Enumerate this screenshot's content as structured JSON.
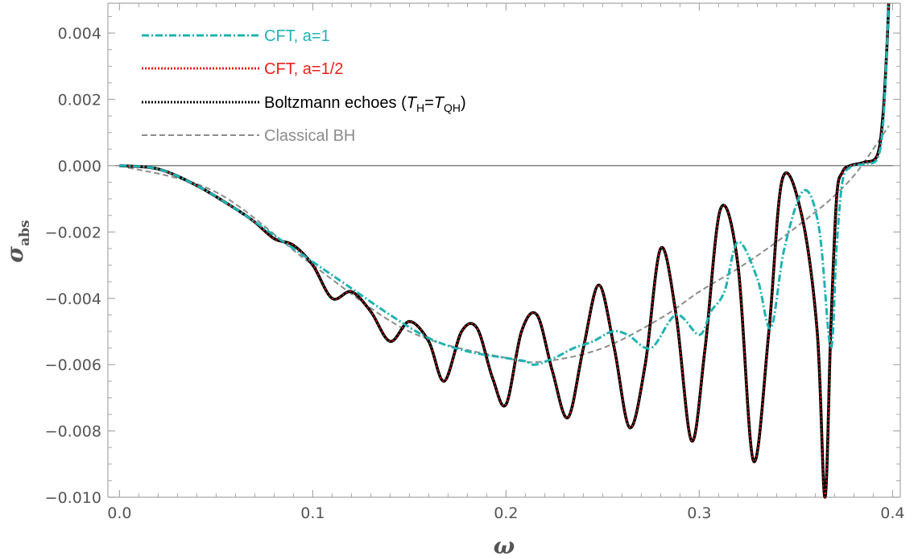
{
  "chart_data": {
    "type": "line",
    "xlabel": "ω",
    "ylabel_main": "σ",
    "ylabel_sub": "abs",
    "xlim": [
      -0.006,
      0.404
    ],
    "ylim": [
      -0.01,
      0.0049
    ],
    "xticks": [
      0.0,
      0.1,
      0.2,
      0.3,
      0.4
    ],
    "xtick_labels": [
      "0.0",
      "0.1",
      "0.2",
      "0.3",
      "0.4"
    ],
    "yticks": [
      0.004,
      0.002,
      0.0,
      -0.002,
      -0.004,
      -0.006,
      -0.008,
      -0.01
    ],
    "ytick_labels": [
      "0.004",
      "0.002",
      "0.000",
      "−0.002",
      "−0.004",
      "−0.006",
      "−0.008",
      "−0.010"
    ],
    "grid": false,
    "legend_position": "top-left",
    "legend": [
      {
        "label": "CFT, a=1",
        "color": "#20B2B2",
        "style": "dash-dot"
      },
      {
        "label": "CFT, a=1/2",
        "color": "#E8201C",
        "style": "dotted"
      },
      {
        "label_parts": [
          "Boltzmann echoes (",
          "T",
          "H",
          "=",
          "T",
          "QH",
          ")"
        ],
        "color": "#000000",
        "style": "dotted"
      },
      {
        "label": "Classical BH",
        "color": "#8C8C8C",
        "style": "dashed"
      }
    ],
    "series": [
      {
        "name": "CFT, a=1",
        "color": "#20B2B2",
        "x": [
          0.0,
          0.02,
          0.04,
          0.06,
          0.08,
          0.09,
          0.1,
          0.12,
          0.14,
          0.16,
          0.18,
          0.2,
          0.21,
          0.215,
          0.225,
          0.235,
          0.245,
          0.255,
          0.263,
          0.275,
          0.288,
          0.3,
          0.306,
          0.313,
          0.32,
          0.33,
          0.337,
          0.344,
          0.354,
          0.362,
          0.368,
          0.371,
          0.374,
          0.378,
          0.385,
          0.392,
          0.395,
          0.397,
          0.398
        ],
        "y": [
          0.0,
          -0.0001,
          -0.0006,
          -0.0013,
          -0.0021,
          -0.0025,
          -0.0029,
          -0.0037,
          -0.0045,
          -0.0052,
          -0.0056,
          -0.0058,
          -0.0059,
          -0.006,
          -0.0058,
          -0.0055,
          -0.0053,
          -0.005,
          -0.0051,
          -0.0055,
          -0.0045,
          -0.0051,
          -0.0044,
          -0.0038,
          -0.0023,
          -0.0034,
          -0.0049,
          -0.0025,
          -0.00075,
          -0.0019,
          -0.0055,
          -0.0025,
          -0.0005,
          -5e-05,
          5e-05,
          0.0002,
          0.0012,
          0.0035,
          0.0049
        ]
      },
      {
        "name": "CFT, a=1/2",
        "color": "#E8201C",
        "x": [
          0.0,
          0.02,
          0.04,
          0.06,
          0.07,
          0.08,
          0.09,
          0.1,
          0.11,
          0.12,
          0.13,
          0.14,
          0.15,
          0.16,
          0.168,
          0.177,
          0.185,
          0.193,
          0.2,
          0.208,
          0.216,
          0.224,
          0.232,
          0.24,
          0.248,
          0.256,
          0.264,
          0.272,
          0.28,
          0.288,
          0.296,
          0.303,
          0.311,
          0.32,
          0.328,
          0.336,
          0.343,
          0.353,
          0.361,
          0.365,
          0.368,
          0.371,
          0.374,
          0.378,
          0.385,
          0.392,
          0.395,
          0.397,
          0.398
        ],
        "y": [
          0.0,
          -0.0001,
          -0.0006,
          -0.0013,
          -0.0017,
          -0.0022,
          -0.0024,
          -0.003,
          -0.004,
          -0.0038,
          -0.0044,
          -0.0053,
          -0.0047,
          -0.0053,
          -0.0065,
          -0.005,
          -0.0049,
          -0.0064,
          -0.0072,
          -0.005,
          -0.0045,
          -0.0062,
          -0.0076,
          -0.0055,
          -0.0036,
          -0.0055,
          -0.0079,
          -0.006,
          -0.0025,
          -0.0045,
          -0.0083,
          -0.0055,
          -0.0013,
          -0.003,
          -0.0089,
          -0.005,
          -0.0004,
          -0.0015,
          -0.005,
          -0.01,
          -0.005,
          -0.001,
          -0.0002,
          0.0,
          0.0001,
          0.0003,
          0.0015,
          0.0035,
          0.0049
        ]
      },
      {
        "name": "Boltzmann echoes (TH=TQH)",
        "color": "#000000",
        "x": [
          0.0,
          0.02,
          0.04,
          0.06,
          0.07,
          0.08,
          0.09,
          0.1,
          0.11,
          0.12,
          0.13,
          0.14,
          0.15,
          0.16,
          0.168,
          0.177,
          0.185,
          0.193,
          0.2,
          0.208,
          0.216,
          0.224,
          0.232,
          0.24,
          0.248,
          0.256,
          0.264,
          0.272,
          0.28,
          0.288,
          0.296,
          0.303,
          0.311,
          0.32,
          0.328,
          0.336,
          0.343,
          0.353,
          0.361,
          0.365,
          0.368,
          0.371,
          0.374,
          0.378,
          0.385,
          0.392,
          0.395,
          0.397,
          0.398
        ],
        "y": [
          0.0,
          -0.0001,
          -0.0006,
          -0.0013,
          -0.0017,
          -0.0022,
          -0.0024,
          -0.003,
          -0.004,
          -0.0038,
          -0.0044,
          -0.0053,
          -0.0047,
          -0.0053,
          -0.0065,
          -0.005,
          -0.0049,
          -0.0064,
          -0.0072,
          -0.005,
          -0.0045,
          -0.0062,
          -0.0076,
          -0.0055,
          -0.0036,
          -0.0055,
          -0.0079,
          -0.006,
          -0.0025,
          -0.0045,
          -0.0083,
          -0.0055,
          -0.0013,
          -0.003,
          -0.0089,
          -0.005,
          -0.0004,
          -0.0015,
          -0.005,
          -0.01,
          -0.005,
          -0.001,
          -0.0002,
          0.0,
          0.0001,
          0.0003,
          0.0015,
          0.0035,
          0.0049
        ]
      },
      {
        "name": "Classical BH",
        "color": "#8C8C8C",
        "x": [
          0.0,
          0.05,
          0.1,
          0.15,
          0.2,
          0.22,
          0.25,
          0.28,
          0.3,
          0.32,
          0.34,
          0.36,
          0.37,
          0.38,
          0.39,
          0.398
        ],
        "y": [
          0.0,
          -0.0008,
          -0.003,
          -0.005,
          -0.0058,
          -0.0059,
          -0.0055,
          -0.0046,
          -0.0038,
          -0.0031,
          -0.0023,
          -0.0014,
          -0.0009,
          -0.0003,
          0.0005,
          0.0012
        ]
      }
    ]
  }
}
